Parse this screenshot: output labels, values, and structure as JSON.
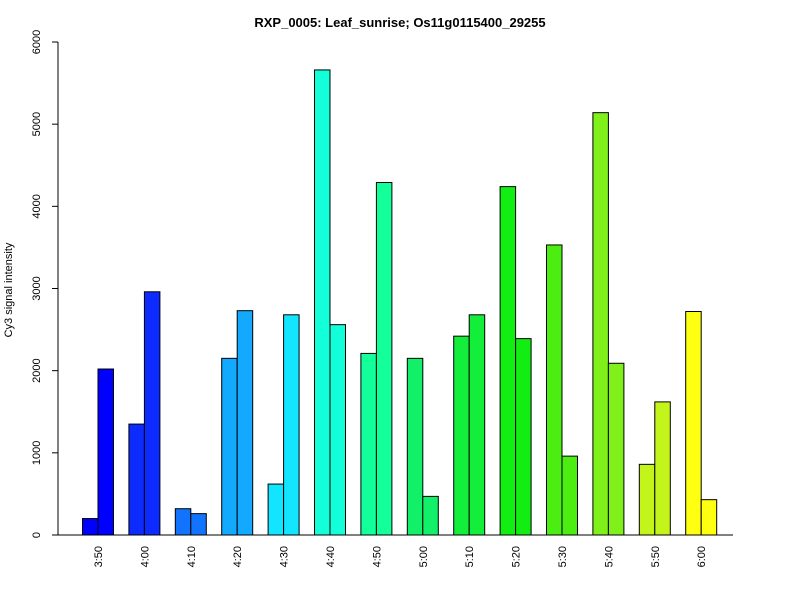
{
  "chart_data": {
    "type": "bar",
    "title": "RXP_0005: Leaf_sunrise; Os11g0115400_29255",
    "xlabel": "",
    "ylabel": "Cy3 signal intensity",
    "ylim": [
      0,
      6000
    ],
    "yticks": [
      0,
      1000,
      2000,
      3000,
      4000,
      5000,
      6000
    ],
    "categories": [
      "3:50",
      "4:00",
      "4:10",
      "4:20",
      "4:30",
      "4:40",
      "4:50",
      "5:00",
      "5:10",
      "5:20",
      "5:30",
      "5:40",
      "5:50",
      "6:00"
    ],
    "colors": [
      "#0000ff",
      "#0d2bff",
      "#1273ff",
      "#12a9ff",
      "#12e5ff",
      "#12ffd9",
      "#12ff99",
      "#12f06a",
      "#12ee3a",
      "#12ee12",
      "#4cee12",
      "#80f01a",
      "#c4f51a",
      "#ffff12"
    ],
    "series": [
      {
        "values": [
          200,
          1350,
          320,
          2150,
          620,
          5660,
          2210,
          2150,
          2420,
          4240,
          3530,
          5140,
          860,
          2720
        ]
      },
      {
        "values": [
          2020,
          2960,
          260,
          2730,
          2680,
          2560,
          4290,
          470,
          2680,
          2390,
          960,
          2090,
          1620,
          430
        ]
      }
    ]
  }
}
